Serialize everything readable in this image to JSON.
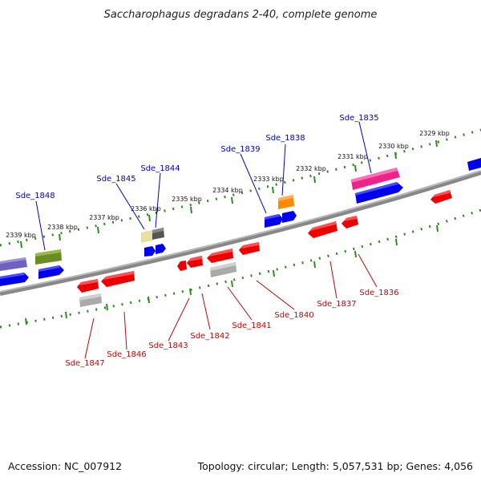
{
  "title": "Saccharophagus degradans 2-40, complete genome",
  "footer": {
    "accession": "Accession: NC_007912",
    "summary": "Topology: circular; Length: 5,057,531 bp; Genes: 4,056"
  },
  "colors": {
    "backbone": "#777777",
    "ticks": "#3a8a1a",
    "forward_label": "#0000cc",
    "reverse_label": "#cc0000"
  },
  "kbp_ticks": [
    "2339 kbp",
    "2338 kbp",
    "2337 kbp",
    "2336 kbp",
    "2335 kbp",
    "2334 kbp",
    "2333 kbp",
    "2332 kbp",
    "2331 kbp",
    "2330 kbp",
    "2329 kbp"
  ],
  "forward_labels": [
    "Sde_1848",
    "Sde_1845",
    "Sde_1844",
    "Sde_1839",
    "Sde_1838",
    "Sde_1835"
  ],
  "reverse_labels": [
    "Sde_1847",
    "Sde_1846",
    "Sde_1843",
    "Sde_1842",
    "Sde_1841",
    "Sde_1840",
    "Sde_1837",
    "Sde_1836"
  ],
  "feature_colors": [
    "#7060c0",
    "#0000ee",
    "#6b8c22",
    "#e0d890",
    "#555555",
    "#ff8800",
    "#ee2288",
    "#ee0000",
    "#aaaaaa"
  ]
}
